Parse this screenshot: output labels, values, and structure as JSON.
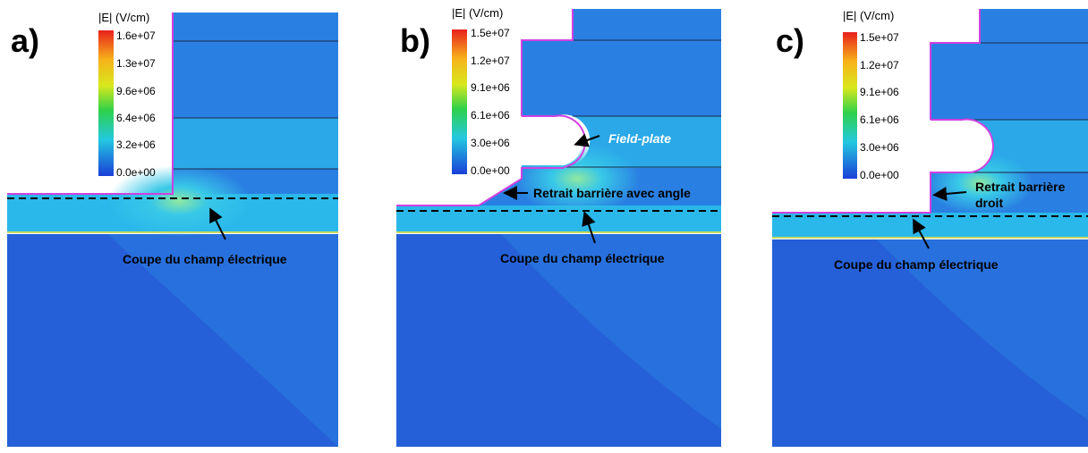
{
  "panels": [
    {
      "label": "a)",
      "colorbar": {
        "title": "|E| (V/cm)",
        "ticks": [
          "1.6e+07",
          "1.3e+07",
          "9.6e+06",
          "6.4e+06",
          "3.2e+06",
          "0.0e+00"
        ]
      },
      "annotations": [
        "Coupe du champ électrique"
      ]
    },
    {
      "label": "b)",
      "colorbar": {
        "title": "|E| (V/cm)",
        "ticks": [
          "1.5e+07",
          "1.2e+07",
          "9.1e+06",
          "6.1e+06",
          "3.0e+06",
          "0.0e+00"
        ]
      },
      "annotations": [
        "Field-plate",
        "Retrait barrière avec angle",
        "Coupe du champ électrique"
      ]
    },
    {
      "label": "c)",
      "colorbar": {
        "title": "|E| (V/cm)",
        "ticks": [
          "1.5e+07",
          "1.2e+07",
          "9.1e+06",
          "6.1e+06",
          "3.0e+06",
          "0.0e+00"
        ]
      },
      "annotations": [
        "Retrait barrière",
        "droit",
        "Coupe du champ électrique"
      ]
    }
  ]
}
